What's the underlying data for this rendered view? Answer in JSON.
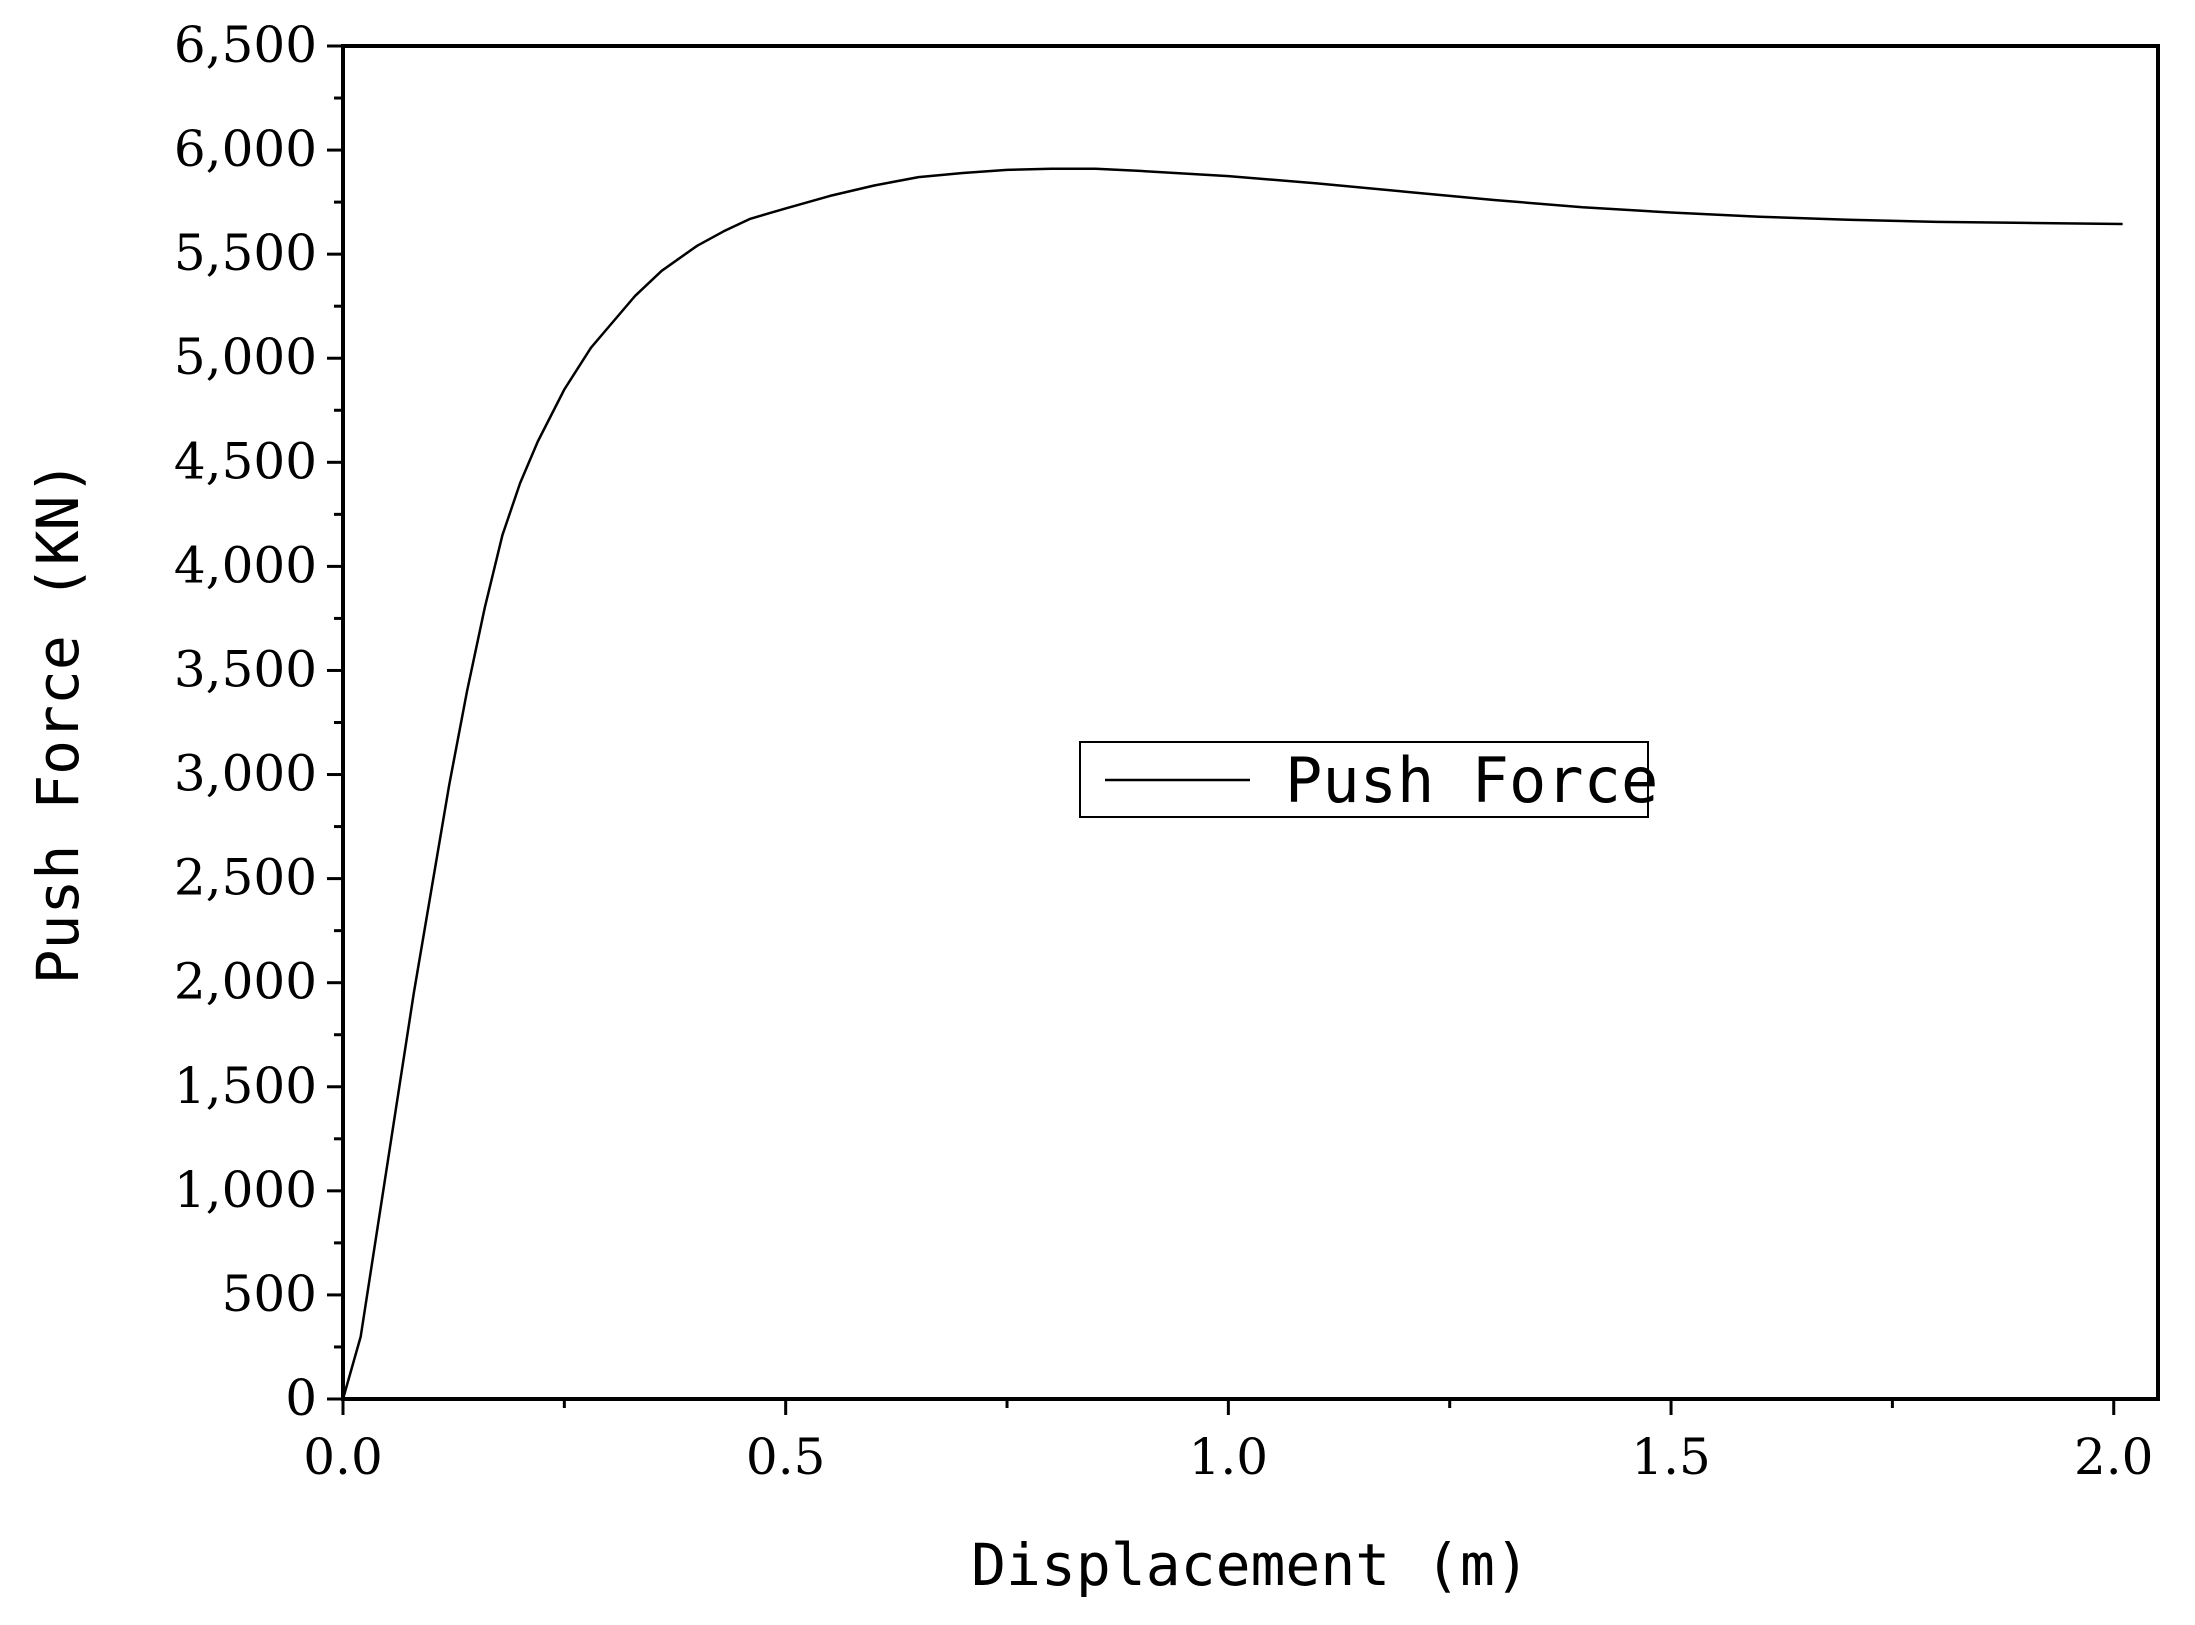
{
  "chart_data": {
    "type": "line",
    "xlabel": "Displacement (m)",
    "ylabel": "Push Force (KN)",
    "xlim": [
      0,
      2.05
    ],
    "ylim": [
      0,
      6500
    ],
    "x_ticks": [
      "0.0",
      "0.5",
      "1.0",
      "1.5",
      "2.0"
    ],
    "y_ticks": [
      "0",
      "500",
      "1,000",
      "1,500",
      "2,000",
      "2,500",
      "3,000",
      "3,500",
      "4,000",
      "4,500",
      "5,000",
      "5,500",
      "6,000",
      "6,500"
    ],
    "grid": false,
    "legend": {
      "position": "center-right",
      "entries": [
        "Push Force"
      ]
    },
    "series": [
      {
        "name": "Push Force",
        "color": "#000000",
        "x": [
          0,
          0.02,
          0.04,
          0.06,
          0.08,
          0.1,
          0.12,
          0.14,
          0.16,
          0.18,
          0.2,
          0.22,
          0.25,
          0.28,
          0.3,
          0.33,
          0.36,
          0.4,
          0.43,
          0.46,
          0.5,
          0.55,
          0.6,
          0.65,
          0.7,
          0.75,
          0.8,
          0.85,
          0.9,
          1.0,
          1.1,
          1.2,
          1.3,
          1.4,
          1.5,
          1.6,
          1.7,
          1.8,
          1.9,
          2.01
        ],
        "y": [
          0,
          300,
          850,
          1400,
          1950,
          2450,
          2950,
          3400,
          3800,
          4150,
          4400,
          4600,
          4850,
          5050,
          5150,
          5300,
          5420,
          5540,
          5610,
          5670,
          5720,
          5780,
          5830,
          5870,
          5890,
          5905,
          5910,
          5910,
          5900,
          5875,
          5840,
          5800,
          5760,
          5725,
          5700,
          5680,
          5665,
          5655,
          5650,
          5645
        ]
      }
    ]
  }
}
